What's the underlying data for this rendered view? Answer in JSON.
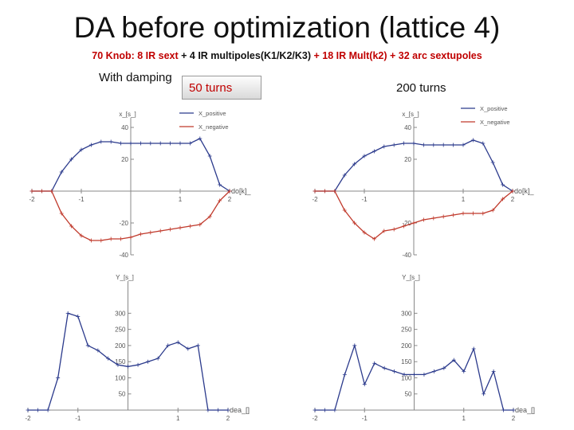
{
  "title": "DA before optimization (lattice 4)",
  "subtitle_parts": [
    {
      "text": "70 Knob: 8 IR sext ",
      "color": "red"
    },
    {
      "text": "+ 4 IR multipoles(K1/K2/K3) ",
      "color": "black"
    },
    {
      "text": "+ 18 IR Mult(k2) + 32 arc sextupoles",
      "color": "red"
    }
  ],
  "damping_label": "With damping",
  "turns_50": "50 turns",
  "turns_200": "200 turns",
  "colors": {
    "pos": "#2b3a8c",
    "neg": "#c0392b",
    "axis": "#888888"
  },
  "chart_data": [
    {
      "id": "xda50",
      "type": "line",
      "panel": "top-left",
      "ylabel": "x_[s_]",
      "xlabel": "do[k]_",
      "xlim": [
        -2,
        2
      ],
      "ylim": [
        -40,
        40
      ],
      "ytick_labels": [
        "40",
        "20",
        "-20",
        "-40"
      ],
      "xtick_labels": [
        "-2",
        "-1",
        "1",
        "2"
      ],
      "legend": [
        "X_positive",
        "X_negative"
      ],
      "series": [
        {
          "name": "X_positive",
          "x": [
            -2,
            -1.8,
            -1.6,
            -1.4,
            -1.2,
            -1,
            -0.8,
            -0.6,
            -0.4,
            -0.2,
            0,
            0.2,
            0.4,
            0.6,
            0.8,
            1,
            1.2,
            1.4,
            1.6,
            1.8,
            2
          ],
          "values": [
            0,
            0,
            0,
            12,
            20,
            26,
            29,
            31,
            31,
            30,
            30,
            30,
            30,
            30,
            30,
            30,
            30,
            33,
            22,
            4,
            0
          ]
        },
        {
          "name": "X_negative",
          "x": [
            -2,
            -1.8,
            -1.6,
            -1.4,
            -1.2,
            -1,
            -0.8,
            -0.6,
            -0.4,
            -0.2,
            0,
            0.2,
            0.4,
            0.6,
            0.8,
            1,
            1.2,
            1.4,
            1.6,
            1.8,
            2
          ],
          "values": [
            0,
            0,
            0,
            -14,
            -22,
            -28,
            -31,
            -31,
            -30,
            -30,
            -29,
            -27,
            -26,
            -25,
            -24,
            -23,
            -22,
            -21,
            -16,
            -6,
            0
          ]
        }
      ]
    },
    {
      "id": "xda200",
      "type": "line",
      "panel": "top-right",
      "ylabel": "x_[s_]",
      "xlabel": "do[k]_",
      "xlim": [
        -2,
        2
      ],
      "ylim": [
        -40,
        40
      ],
      "ytick_labels": [
        "40",
        "20",
        "-20",
        "-40"
      ],
      "xtick_labels": [
        "-2",
        "-1",
        "1",
        "2"
      ],
      "legend": [
        "X_positive",
        "X_negative"
      ],
      "series": [
        {
          "name": "X_positive",
          "x": [
            -2,
            -1.8,
            -1.6,
            -1.4,
            -1.2,
            -1,
            -0.8,
            -0.6,
            -0.4,
            -0.2,
            0,
            0.2,
            0.4,
            0.6,
            0.8,
            1,
            1.2,
            1.4,
            1.6,
            1.8,
            2
          ],
          "values": [
            0,
            0,
            0,
            10,
            17,
            22,
            25,
            28,
            29,
            30,
            30,
            29,
            29,
            29,
            29,
            29,
            32,
            30,
            18,
            4,
            0
          ]
        },
        {
          "name": "X_negative",
          "x": [
            -2,
            -1.8,
            -1.6,
            -1.4,
            -1.2,
            -1,
            -0.8,
            -0.6,
            -0.4,
            -0.2,
            0,
            0.2,
            0.4,
            0.6,
            0.8,
            1,
            1.2,
            1.4,
            1.6,
            1.8,
            2
          ],
          "values": [
            0,
            0,
            0,
            -12,
            -20,
            -26,
            -30,
            -25,
            -24,
            -22,
            -20,
            -18,
            -17,
            -16,
            -15,
            -14,
            -14,
            -14,
            -12,
            -5,
            0
          ]
        }
      ]
    },
    {
      "id": "yda50",
      "type": "line",
      "panel": "bottom-left",
      "ylabel": "Y_[s_]",
      "xlabel": "dea_[]",
      "xlim": [
        -2,
        2
      ],
      "ylim": [
        0,
        370
      ],
      "ytick_labels": [
        "300",
        "250",
        "200",
        "150",
        "100",
        "50"
      ],
      "xtick_labels": [
        "-2",
        "-1",
        "1",
        "2"
      ],
      "series": [
        {
          "name": "Y",
          "x": [
            -2,
            -1.8,
            -1.6,
            -1.4,
            -1.2,
            -1,
            -0.8,
            -0.6,
            -0.4,
            -0.2,
            0,
            0.2,
            0.4,
            0.6,
            0.8,
            1,
            1.2,
            1.4,
            1.6,
            1.8,
            2
          ],
          "values": [
            0,
            0,
            0,
            100,
            300,
            290,
            200,
            185,
            160,
            140,
            135,
            140,
            150,
            160,
            200,
            210,
            190,
            200,
            0,
            0,
            0
          ]
        }
      ]
    },
    {
      "id": "yda200",
      "type": "line",
      "panel": "bottom-right",
      "ylabel": "Y_[s_]",
      "xlabel": "dea_[]",
      "xlim": [
        -2,
        2
      ],
      "ylim": [
        0,
        370
      ],
      "ytick_labels": [
        "300",
        "250",
        "200",
        "150",
        "100",
        "50"
      ],
      "xtick_labels": [
        "-2",
        "-1",
        "1",
        "2"
      ],
      "series": [
        {
          "name": "Y",
          "x": [
            -2,
            -1.8,
            -1.6,
            -1.4,
            -1.2,
            -1,
            -0.8,
            -0.6,
            -0.4,
            -0.2,
            0,
            0.2,
            0.4,
            0.6,
            0.8,
            1,
            1.2,
            1.4,
            1.6,
            1.8,
            2
          ],
          "values": [
            0,
            0,
            0,
            110,
            200,
            80,
            145,
            130,
            120,
            110,
            110,
            110,
            120,
            130,
            155,
            120,
            190,
            50,
            120,
            0,
            0
          ]
        }
      ]
    }
  ]
}
